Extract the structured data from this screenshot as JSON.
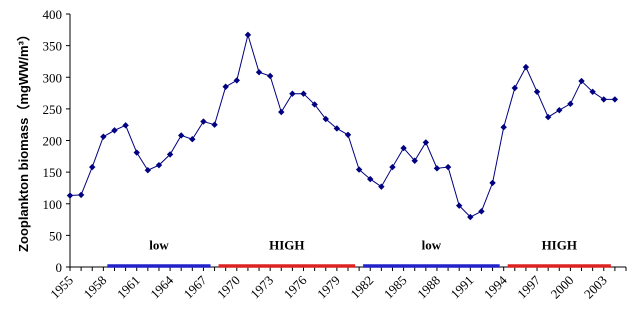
{
  "chart_data": {
    "type": "line",
    "ylabel": "Zooplankton biomass（mgWW/m³）",
    "xlabel": "",
    "title": "",
    "ylim": [
      0,
      400
    ],
    "yticks": [
      0,
      50,
      100,
      150,
      200,
      250,
      300,
      350,
      400
    ],
    "xlim": [
      1955,
      2005
    ],
    "xticks": [
      1955,
      1958,
      1961,
      1964,
      1967,
      1970,
      1973,
      1976,
      1979,
      1982,
      1985,
      1988,
      1991,
      1994,
      1997,
      2000,
      2003
    ],
    "series": [
      {
        "color": "#000080",
        "marker": "diamond",
        "x": [
          1955,
          1956,
          1957,
          1958,
          1959,
          1960,
          1961,
          1962,
          1963,
          1964,
          1965,
          1966,
          1967,
          1968,
          1969,
          1970,
          1971,
          1972,
          1973,
          1974,
          1975,
          1976,
          1977,
          1978,
          1979,
          1980,
          1981,
          1982,
          1983,
          1984,
          1985,
          1986,
          1987,
          1988,
          1989,
          1990,
          1991,
          1992,
          1993,
          1994,
          1995,
          1996,
          1997,
          1998,
          1999,
          2000,
          2001,
          2002,
          2003,
          2004
        ],
        "values": [
          113,
          114,
          158,
          206,
          216,
          224,
          181,
          153,
          161,
          178,
          208,
          202,
          230,
          225,
          285,
          295,
          367,
          308,
          302,
          245,
          274,
          274,
          257,
          234,
          219,
          209,
          154,
          139,
          127,
          158,
          188,
          168,
          197,
          156,
          158,
          97,
          79,
          88,
          133,
          221,
          283,
          316,
          277,
          237,
          248,
          258,
          294,
          277,
          265,
          265
        ]
      }
    ],
    "regimes": [
      {
        "label": "low",
        "start": 1958,
        "end": 1968,
        "color": "#2222cc"
      },
      {
        "label": "HIGH",
        "start": 1968,
        "end": 1981,
        "color": "#dd2222"
      },
      {
        "label": "low",
        "start": 1981,
        "end": 1994,
        "color": "#2222cc"
      },
      {
        "label": "HIGH",
        "start": 1994,
        "end": 2004,
        "color": "#dd2222"
      }
    ]
  }
}
